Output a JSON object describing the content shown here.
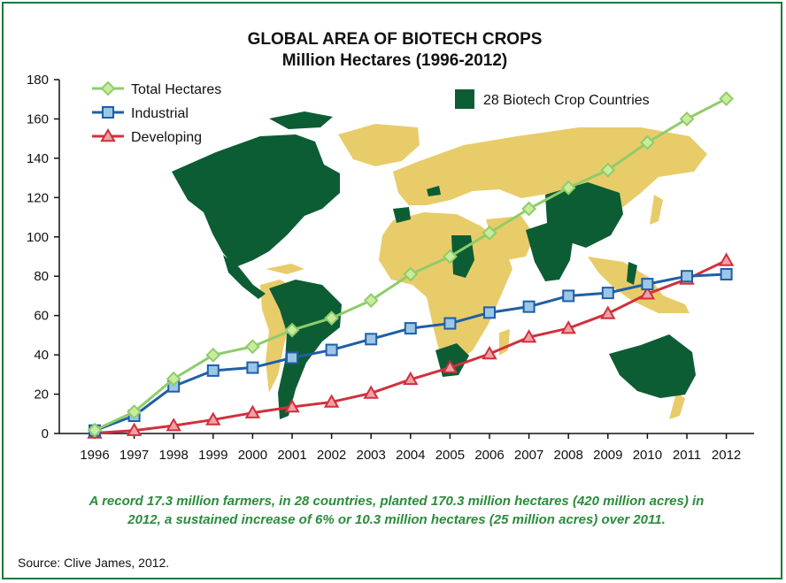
{
  "chart_data": {
    "type": "line",
    "title": "GLOBAL AREA OF BIOTECH CROPS",
    "subtitle": "Million Hectares (1996-2012)",
    "x": [
      "1996",
      "1997",
      "1998",
      "1999",
      "2000",
      "2001",
      "2002",
      "2003",
      "2004",
      "2005",
      "2006",
      "2007",
      "2008",
      "2009",
      "2010",
      "2011",
      "2012"
    ],
    "ylim": [
      0,
      180
    ],
    "yticks": [
      0,
      20,
      40,
      60,
      80,
      100,
      120,
      140,
      160,
      180
    ],
    "series": [
      {
        "name": "Total Hectares",
        "color": "#8fcc6b",
        "marker": "diamond",
        "values": [
          1.7,
          11,
          27.8,
          39.9,
          44.2,
          52.6,
          58.7,
          67.7,
          81,
          90,
          102,
          114.3,
          125,
          134,
          148,
          160,
          170.3
        ]
      },
      {
        "name": "Industrial",
        "color": "#1f5fa6",
        "marker": "square",
        "values": [
          1.5,
          9,
          24,
          32,
          33.5,
          38.5,
          42.5,
          48,
          53.5,
          56,
          61.5,
          64.5,
          70,
          71.5,
          76,
          80,
          81
        ]
      },
      {
        "name": "Developing",
        "color": "#d0303c",
        "marker": "triangle",
        "values": [
          0.2,
          1.5,
          4,
          7,
          10.5,
          13.5,
          16,
          20.5,
          27.5,
          33.5,
          40.5,
          49,
          53.5,
          61,
          71,
          78.5,
          88
        ]
      }
    ],
    "legend_position": "top-left",
    "grid": false
  },
  "map_legend": {
    "label": "28 Biotech Crop Countries",
    "color": "#0c5d33"
  },
  "map_land_color": "#e8cc6a",
  "caption": {
    "line1": "A record 17.3 million farmers, in 28 countries, planted 170.3 million hectares (420 million acres) in",
    "line2": "2012, a sustained increase of 6% or 10.3 million hectares (25 million acres) over 2011."
  },
  "source": "Source: Clive James, 2012."
}
